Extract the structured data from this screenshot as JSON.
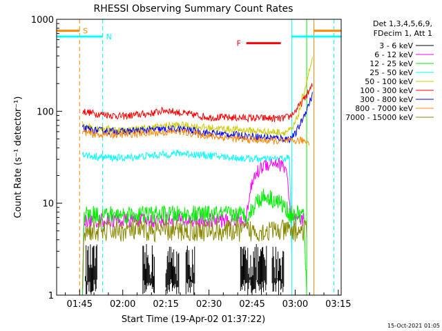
{
  "chart_data": {
    "type": "line",
    "title": "RHESSI Observing Summary Count Rates",
    "xlabel": "Start Time (19-Apr-02 01:37:22)",
    "ylabel": "Count Rate (s⁻¹ detector⁻¹)",
    "yscale": "log",
    "ylim": [
      1,
      1000
    ],
    "xlim_minutes": [
      97,
      196
    ],
    "x_ticks": [
      {
        "label": "01:45",
        "min": 105
      },
      {
        "label": "02:00",
        "min": 120
      },
      {
        "label": "02:15",
        "min": 135
      },
      {
        "label": "02:30",
        "min": 150
      },
      {
        "label": "02:45",
        "min": 165
      },
      {
        "label": "03:00",
        "min": 180
      },
      {
        "label": "03:15",
        "min": 195
      }
    ],
    "y_ticks": [
      {
        "label": "1",
        "value": 1
      },
      {
        "label": "10",
        "value": 10
      },
      {
        "label": "100",
        "value": 100
      },
      {
        "label": "1000",
        "value": 1000
      }
    ],
    "legend": {
      "placement": "right",
      "header": [
        "Det 1,3,4,5,6,9,",
        "FDecim 1, Att 1"
      ],
      "entries": [
        {
          "label": "3 - 6 keV",
          "color": "#000000"
        },
        {
          "label": "6 - 12 keV",
          "color": "#ff00ff"
        },
        {
          "label": "12 - 25 keV",
          "color": "#00ee00"
        },
        {
          "label": "25 - 50 keV",
          "color": "#00ffff"
        },
        {
          "label": "50 - 100 keV",
          "color": "#cccc00"
        },
        {
          "label": "100 - 300 keV",
          "color": "#ff0000"
        },
        {
          "label": "300 - 800 keV",
          "color": "#0000ff"
        },
        {
          "label": "800 - 7000 keV",
          "color": "#ff8800"
        },
        {
          "label": "7000 - 15000 keV",
          "color": "#888800"
        }
      ]
    },
    "series": [
      {
        "color": "#ff0000",
        "x": [
          106,
          110,
          120,
          130,
          135,
          140,
          150,
          160,
          170,
          175,
          178,
          180,
          182,
          184,
          186
        ],
        "y": [
          100,
          95,
          88,
          95,
          103,
          96,
          86,
          85,
          84,
          83,
          87,
          100,
          120,
          150,
          190
        ],
        "noise": 0.04
      },
      {
        "color": "#cccc00",
        "x": [
          106,
          110,
          120,
          130,
          135,
          140,
          150,
          160,
          170,
          176,
          179,
          181,
          183,
          185,
          186
        ],
        "y": [
          72,
          66,
          62,
          66,
          70,
          71,
          66,
          63,
          60,
          59,
          63,
          90,
          160,
          280,
          360
        ],
        "noise": 0.04
      },
      {
        "color": "#0000ff",
        "x": [
          106,
          110,
          120,
          130,
          140,
          150,
          160,
          170,
          178,
          180,
          182,
          184,
          186
        ],
        "y": [
          65,
          62,
          60,
          63,
          64,
          58,
          55,
          52,
          50,
          56,
          75,
          105,
          150
        ],
        "noise": 0.04
      },
      {
        "color": "#ff8800",
        "x": [
          106,
          110,
          120,
          130,
          140,
          150,
          160,
          170,
          178,
          182,
          185
        ],
        "y": [
          60,
          56,
          56,
          58,
          60,
          54,
          50,
          48,
          47,
          48,
          47
        ],
        "noise": 0.04
      },
      {
        "color": "#00ffff",
        "x": [
          106,
          110,
          120,
          130,
          140,
          150,
          160,
          170,
          178,
          178.8
        ],
        "y": [
          34,
          32,
          31,
          33,
          35,
          33,
          31,
          30,
          31,
          3
        ],
        "noise": 0.04
      },
      {
        "color": "#ff00ff",
        "x": [
          106,
          106.5,
          120,
          150,
          163,
          164,
          166,
          169,
          173,
          177,
          178.5,
          181,
          183
        ],
        "y": [
          1,
          6.5,
          6.5,
          6.5,
          6.5,
          12,
          20,
          26,
          28,
          24,
          6.5,
          6.5,
          6.5
        ],
        "noise": 0.08
      },
      {
        "color": "#00ee00",
        "x": [
          106,
          106.5,
          120,
          150,
          164,
          167,
          170,
          175,
          177,
          178.5,
          181,
          183,
          184
        ],
        "y": [
          1,
          7.5,
          7.5,
          7.5,
          7.5,
          11,
          12,
          10,
          8.5,
          7.5,
          7.5,
          7.5,
          1
        ],
        "noise": 0.1
      },
      {
        "color": "#888800",
        "x": [
          106,
          106.5,
          120,
          150,
          170,
          180,
          184
        ],
        "y": [
          1,
          5,
          5,
          5,
          5,
          5,
          5
        ],
        "noise": 0.12
      }
    ],
    "black_bursts": [
      [
        107,
        111
      ],
      [
        127,
        131
      ],
      [
        135,
        139.5
      ],
      [
        142,
        145
      ],
      [
        161,
        170
      ],
      [
        172,
        176
      ]
    ],
    "shading": [
      {
        "label": "S",
        "color": "#ff8800",
        "y": 750,
        "x": [
          97,
          105
        ],
        "boundary_min": 105
      },
      {
        "label": "N",
        "color": "#00ffff",
        "y": 650,
        "x": [
          97,
          113
        ],
        "boundary_min": 113
      },
      {
        "label": "",
        "color": "#00ffff",
        "y": 650,
        "x": [
          178.8,
          196
        ],
        "boundary_min": 178.8
      },
      {
        "label": "",
        "color": "#ff8800",
        "y": 750,
        "x": [
          186.5,
          196
        ],
        "boundary_min": 186.5
      }
    ],
    "flare": {
      "label": "F",
      "color": "#ff0000",
      "x": [
        163,
        175
      ],
      "y": 550
    },
    "vertical_markers": [
      {
        "min": 105,
        "color": "#ff8800",
        "style": "dashed"
      },
      {
        "min": 113,
        "color": "#00ffff",
        "style": "dashed"
      },
      {
        "min": 178.8,
        "color": "#00ffff",
        "style": "solid"
      },
      {
        "min": 186.5,
        "color": "#ff8800",
        "style": "solid"
      },
      {
        "min": 193.5,
        "color": "#00ffff",
        "style": "dashed"
      },
      {
        "min": 184,
        "color": "#00ee00",
        "style": "solid"
      }
    ],
    "grid": false
  },
  "footer": {
    "timestamp": "15-Oct-2021 01:05"
  }
}
